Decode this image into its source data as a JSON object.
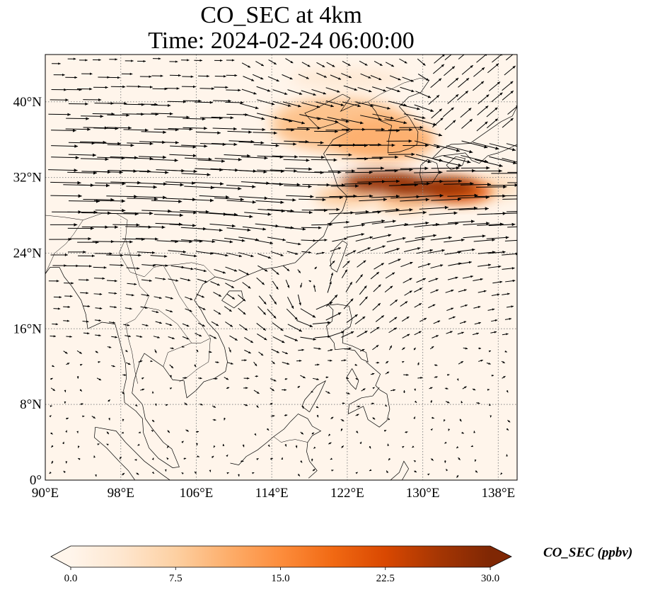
{
  "title_line1": "CO_SEC at 4km",
  "title_line2": "Time: 2024-02-24 06:00:00",
  "map": {
    "lon_range": [
      90,
      140
    ],
    "lat_range": [
      0,
      45
    ],
    "lon_ticks": [
      {
        "value": 90,
        "label": "90°E"
      },
      {
        "value": 98,
        "label": "98°E"
      },
      {
        "value": 106,
        "label": "106°E"
      },
      {
        "value": 114,
        "label": "114°E"
      },
      {
        "value": 122,
        "label": "122°E"
      },
      {
        "value": 130,
        "label": "130°E"
      },
      {
        "value": 138,
        "label": "138°E"
      }
    ],
    "lat_ticks": [
      {
        "value": 0,
        "label": "0°"
      },
      {
        "value": 8,
        "label": "8°N"
      },
      {
        "value": 16,
        "label": "16°N"
      },
      {
        "value": 24,
        "label": "24°N"
      },
      {
        "value": 32,
        "label": "32°N"
      },
      {
        "value": 40,
        "label": "40°N"
      }
    ],
    "gridlines": true,
    "background_color": "#fff5eb",
    "vector_color": "#000000"
  },
  "colorbar": {
    "label": "CO_SEC (ppbv)",
    "range": [
      0,
      30
    ],
    "ticks": [
      {
        "value": 0,
        "label": "0.0"
      },
      {
        "value": 7.5,
        "label": "7.5"
      },
      {
        "value": 15,
        "label": "15.0"
      },
      {
        "value": 22.5,
        "label": "22.5"
      },
      {
        "value": 30,
        "label": "30.0"
      }
    ],
    "colormap": [
      "#fff5eb",
      "#fee6ce",
      "#fdd0a2",
      "#fdae6b",
      "#fd8d3c",
      "#f16913",
      "#d94801",
      "#a63603",
      "#7f2704"
    ],
    "extend": "both"
  },
  "plumes": [
    {
      "lon": 121.5,
      "lat": 37.5,
      "value": 9
    },
    {
      "lon": 126.0,
      "lat": 36.0,
      "value": 11
    },
    {
      "lon": 118.0,
      "lat": 38.0,
      "value": 5
    },
    {
      "lon": 125.5,
      "lat": 31.5,
      "value": 28
    },
    {
      "lon": 131.0,
      "lat": 31.0,
      "value": 28
    },
    {
      "lon": 134.0,
      "lat": 30.5,
      "value": 20
    },
    {
      "lon": 122.0,
      "lat": 30.0,
      "value": 8
    },
    {
      "lon": 128.0,
      "lat": 29.5,
      "value": 9
    },
    {
      "lon": 138.0,
      "lat": 31.0,
      "value": 5
    },
    {
      "lon": 122.0,
      "lat": 42.5,
      "value": 3
    }
  ]
}
